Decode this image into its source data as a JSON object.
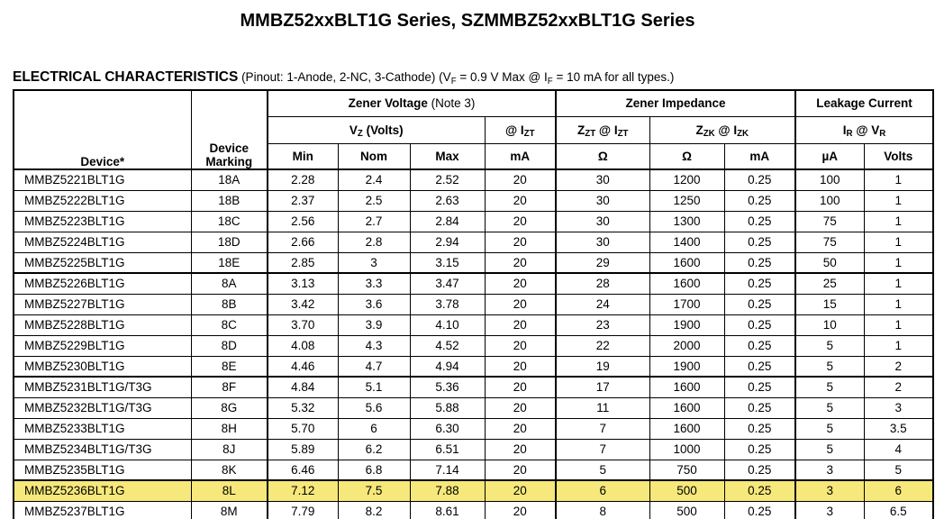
{
  "title": "MMBZ52xxBLT1G Series, SZMMBZ52xxBLT1G Series",
  "section": {
    "heading": "ELECTRICAL CHARACTERISTICS",
    "note": {
      "p0": " (Pinout: 1-Anode, 2-NC, 3-Cathode) (V",
      "s0": "F",
      "p1": " = 0.9 V Max @ I",
      "s1": "F",
      "p2": " = 10 mA for all types.)"
    }
  },
  "colors": {
    "row_highlight": "#F6E87A",
    "border": "#000000",
    "text": "#000000",
    "background": "#FFFFFF"
  },
  "header": {
    "device": "Device*",
    "marking_line1": "Device",
    "marking_line2": "Marking",
    "zener_voltage": {
      "bold": "Zener Voltage",
      "note": " (Note 3)"
    },
    "zener_impedance": "Zener Impedance",
    "leakage_current": "Leakage Current",
    "vz": {
      "p0": "V",
      "s0": "Z",
      "p1": " (Volts)"
    },
    "at_izt": {
      "p0": "@ I",
      "s0": "ZT"
    },
    "zzt": {
      "p0": "Z",
      "s0": "ZT",
      "p1": " @ I",
      "s1": "ZT"
    },
    "zzk": {
      "p0": "Z",
      "s0": "ZK",
      "p1": " @ I",
      "s1": "ZK"
    },
    "ir_vr": {
      "p0": "I",
      "s0": "R",
      "p1": " @ V",
      "s1": "R"
    },
    "units": {
      "min": "Min",
      "nom": "Nom",
      "max": "Max",
      "ma_izt": "mA",
      "ohm_zzt": "Ω",
      "ohm_zzk": "Ω",
      "ma_zzk": "mA",
      "ua": "µA",
      "volts": "Volts"
    }
  },
  "table": {
    "groups": [
      {
        "rows": [
          {
            "device": "MMBZ5221BLT1G",
            "marking": "18A",
            "values": [
              "2.28",
              "2.4",
              "2.52",
              "20",
              "30",
              "1200",
              "0.25",
              "100",
              "1"
            ],
            "highlight": false
          },
          {
            "device": "MMBZ5222BLT1G",
            "marking": "18B",
            "values": [
              "2.37",
              "2.5",
              "2.63",
              "20",
              "30",
              "1250",
              "0.25",
              "100",
              "1"
            ],
            "highlight": false
          },
          {
            "device": "MMBZ5223BLT1G",
            "marking": "18C",
            "values": [
              "2.56",
              "2.7",
              "2.84",
              "20",
              "30",
              "1300",
              "0.25",
              "75",
              "1"
            ],
            "highlight": false
          },
          {
            "device": "MMBZ5224BLT1G",
            "marking": "18D",
            "values": [
              "2.66",
              "2.8",
              "2.94",
              "20",
              "30",
              "1400",
              "0.25",
              "75",
              "1"
            ],
            "highlight": false
          },
          {
            "device": "MMBZ5225BLT1G",
            "marking": "18E",
            "values": [
              "2.85",
              "3",
              "3.15",
              "20",
              "29",
              "1600",
              "0.25",
              "50",
              "1"
            ],
            "highlight": false
          }
        ]
      },
      {
        "rows": [
          {
            "device": "MMBZ5226BLT1G",
            "marking": "8A",
            "values": [
              "3.13",
              "3.3",
              "3.47",
              "20",
              "28",
              "1600",
              "0.25",
              "25",
              "1"
            ],
            "highlight": false
          },
          {
            "device": "MMBZ5227BLT1G",
            "marking": "8B",
            "values": [
              "3.42",
              "3.6",
              "3.78",
              "20",
              "24",
              "1700",
              "0.25",
              "15",
              "1"
            ],
            "highlight": false
          },
          {
            "device": "MMBZ5228BLT1G",
            "marking": "8C",
            "values": [
              "3.70",
              "3.9",
              "4.10",
              "20",
              "23",
              "1900",
              "0.25",
              "10",
              "1"
            ],
            "highlight": false
          },
          {
            "device": "MMBZ5229BLT1G",
            "marking": "8D",
            "values": [
              "4.08",
              "4.3",
              "4.52",
              "20",
              "22",
              "2000",
              "0.25",
              "5",
              "1"
            ],
            "highlight": false
          },
          {
            "device": "MMBZ5230BLT1G",
            "marking": "8E",
            "values": [
              "4.46",
              "4.7",
              "4.94",
              "20",
              "19",
              "1900",
              "0.25",
              "5",
              "2"
            ],
            "highlight": false
          }
        ]
      },
      {
        "rows": [
          {
            "device": "MMBZ5231BLT1G/T3G",
            "marking": "8F",
            "values": [
              "4.84",
              "5.1",
              "5.36",
              "20",
              "17",
              "1600",
              "0.25",
              "5",
              "2"
            ],
            "highlight": false
          },
          {
            "device": "MMBZ5232BLT1G/T3G",
            "marking": "8G",
            "values": [
              "5.32",
              "5.6",
              "5.88",
              "20",
              "11",
              "1600",
              "0.25",
              "5",
              "3"
            ],
            "highlight": false
          },
          {
            "device": "MMBZ5233BLT1G",
            "marking": "8H",
            "values": [
              "5.70",
              "6",
              "6.30",
              "20",
              "7",
              "1600",
              "0.25",
              "5",
              "3.5"
            ],
            "highlight": false
          },
          {
            "device": "MMBZ5234BLT1G/T3G",
            "marking": "8J",
            "values": [
              "5.89",
              "6.2",
              "6.51",
              "20",
              "7",
              "1000",
              "0.25",
              "5",
              "4"
            ],
            "highlight": false
          },
          {
            "device": "MMBZ5235BLT1G",
            "marking": "8K",
            "values": [
              "6.46",
              "6.8",
              "7.14",
              "20",
              "5",
              "750",
              "0.25",
              "3",
              "5"
            ],
            "highlight": false
          }
        ]
      },
      {
        "rows": [
          {
            "device": "MMBZ5236BLT1G",
            "marking": "8L",
            "values": [
              "7.12",
              "7.5",
              "7.88",
              "20",
              "6",
              "500",
              "0.25",
              "3",
              "6"
            ],
            "highlight": true
          },
          {
            "device": "MMBZ5237BLT1G",
            "marking": "8M",
            "values": [
              "7.79",
              "8.2",
              "8.61",
              "20",
              "8",
              "500",
              "0.25",
              "3",
              "6.5"
            ],
            "highlight": false
          }
        ]
      }
    ]
  }
}
